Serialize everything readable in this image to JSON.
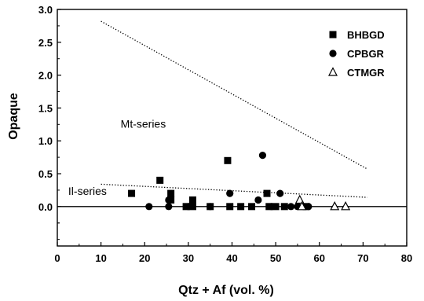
{
  "chart_data": {
    "type": "scatter",
    "xlabel": "Qtz + Af (vol. %)",
    "ylabel": "Opaque",
    "xlim": [
      0,
      80
    ],
    "ylim": [
      -0.6,
      3.0
    ],
    "x_ticks": [
      "0",
      "10",
      "20",
      "30",
      "40",
      "50",
      "60",
      "70",
      "80"
    ],
    "y_ticks": [
      "3.0",
      "2.5",
      "2.0",
      "1.5",
      "1.0",
      "0.5",
      "0.0"
    ],
    "grid": false,
    "legend_position": "top-right",
    "series": [
      {
        "name": "BHBGD",
        "marker": "square",
        "points": [
          [
            17,
            0.2
          ],
          [
            23.5,
            0.4
          ],
          [
            26,
            0.2
          ],
          [
            26,
            0.1
          ],
          [
            29.5,
            0.0
          ],
          [
            31,
            0.1
          ],
          [
            31,
            0.0
          ],
          [
            35,
            0.0
          ],
          [
            39,
            0.7
          ],
          [
            39.5,
            0.0
          ],
          [
            42,
            0.0
          ],
          [
            44.5,
            0.0
          ],
          [
            48,
            0.2
          ],
          [
            48.5,
            0.0
          ],
          [
            50,
            0.0
          ],
          [
            52,
            0.0
          ],
          [
            57,
            0.0
          ]
        ]
      },
      {
        "name": "CPBGR",
        "marker": "circle",
        "points": [
          [
            21,
            0.0
          ],
          [
            25.5,
            0.1
          ],
          [
            25.5,
            0.0
          ],
          [
            30,
            0.0
          ],
          [
            35,
            0.0
          ],
          [
            39.5,
            0.2
          ],
          [
            46,
            0.1
          ],
          [
            47,
            0.78
          ],
          [
            49,
            0.0
          ],
          [
            51,
            0.2
          ],
          [
            53.5,
            0.0
          ],
          [
            55,
            0.0
          ],
          [
            57.5,
            0.0
          ]
        ]
      },
      {
        "name": "CTMGR",
        "marker": "triangle",
        "points": [
          [
            55.5,
            0.1
          ],
          [
            56,
            0.0
          ],
          [
            63.5,
            0.0
          ],
          [
            66,
            0.0
          ]
        ]
      }
    ],
    "reference_lines": [
      {
        "style": "dotted",
        "points": [
          [
            10,
            2.82
          ],
          [
            71,
            0.57
          ]
        ]
      },
      {
        "style": "dotted",
        "points": [
          [
            10,
            0.34
          ],
          [
            71,
            0.14
          ]
        ]
      },
      {
        "style": "solid",
        "points": [
          [
            0,
            0.0
          ],
          [
            80,
            0.0
          ]
        ]
      }
    ],
    "annotations": [
      {
        "text": "Mt-series",
        "x": 14.5,
        "y": 1.2
      },
      {
        "text": "Il-series",
        "x": 2.5,
        "y": 0.18
      }
    ]
  },
  "colors": {
    "ink": "#000000",
    "background": "#ffffff"
  }
}
